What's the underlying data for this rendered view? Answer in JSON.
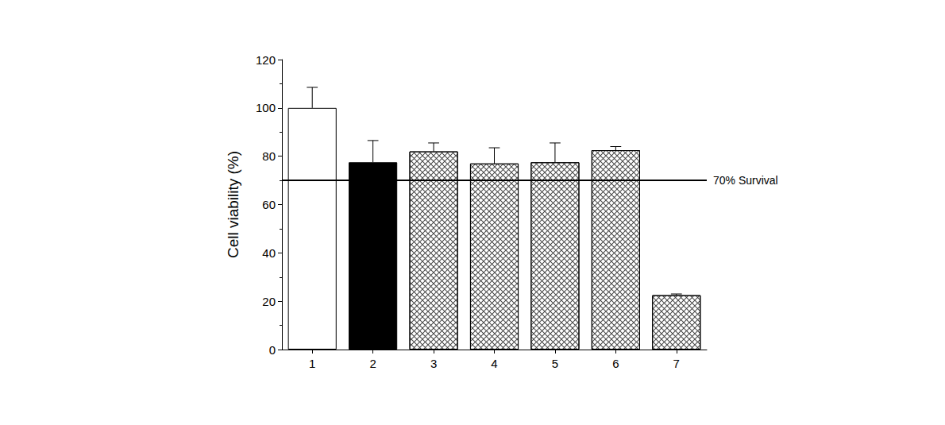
{
  "chart_data": {
    "type": "bar",
    "y_label": "Cell viability (%)",
    "categories": [
      "1",
      "2",
      "3",
      "4",
      "5",
      "6",
      "7"
    ],
    "values": [
      100,
      77.5,
      82,
      77,
      77.5,
      82.5,
      22.5
    ],
    "errors": [
      8.5,
      9,
      3.5,
      6.5,
      8,
      1.5,
      0.5
    ],
    "colors": [
      "#ffffff",
      "#000000",
      "#444444",
      "#444444",
      "#444444",
      "#444444",
      "#444444"
    ],
    "ylim": [
      0,
      120
    ],
    "yticks": [
      0,
      20,
      40,
      60,
      80,
      100,
      120
    ],
    "annotations": [
      {
        "text": "70% Survival",
        "y": 70
      }
    ],
    "grid": false
  }
}
